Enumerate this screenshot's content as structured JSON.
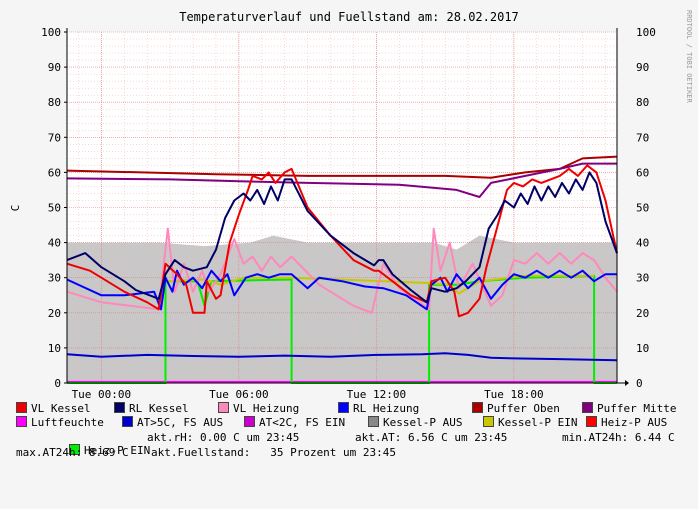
{
  "chart_data": {
    "type": "line",
    "title": "Temperaturverlauf und Fuellstand am: 28.02.2017",
    "ylabel": "C",
    "ylim": [
      0,
      100
    ],
    "yticks": [
      0,
      10,
      20,
      30,
      40,
      50,
      60,
      70,
      80,
      90,
      100
    ],
    "xlim": [
      -1.5,
      22.5
    ],
    "xticks": [
      {
        "h": 0,
        "label": "Tue 00:00"
      },
      {
        "h": 6,
        "label": "Tue 06:00"
      },
      {
        "h": 12,
        "label": "Tue 12:00"
      },
      {
        "h": 18,
        "label": "Tue 18:00"
      }
    ],
    "grid": true,
    "legend_position": "bottom",
    "fill_series": {
      "name": "Kessel-P AUS",
      "color": "#c8c8c8",
      "points": [
        [
          -1.5,
          40
        ],
        [
          2.5,
          40
        ],
        [
          4.5,
          39
        ],
        [
          6.5,
          40
        ],
        [
          7.5,
          42
        ],
        [
          9,
          40
        ],
        [
          12,
          40
        ],
        [
          14.5,
          40
        ],
        [
          15.5,
          38
        ],
        [
          16.5,
          42
        ],
        [
          18,
          40
        ],
        [
          20,
          40
        ],
        [
          22.5,
          40
        ]
      ]
    },
    "series": [
      {
        "name": "Puffer Oben",
        "color": "#aa0000",
        "width": 2,
        "points": [
          [
            -1.5,
            60.5
          ],
          [
            5,
            59.5
          ],
          [
            9,
            59
          ],
          [
            15,
            59
          ],
          [
            17,
            58.5
          ],
          [
            18.5,
            60
          ],
          [
            20,
            61
          ],
          [
            21,
            64
          ],
          [
            22.5,
            64.5
          ]
        ]
      },
      {
        "name": "Puffer Mitte",
        "color": "#800080",
        "width": 2,
        "points": [
          [
            -1.5,
            58.3
          ],
          [
            3,
            58
          ],
          [
            6,
            57.5
          ],
          [
            9,
            57
          ],
          [
            13,
            56.5
          ],
          [
            15.5,
            55
          ],
          [
            16.5,
            53
          ],
          [
            17,
            57
          ],
          [
            18.5,
            59
          ],
          [
            20,
            61
          ],
          [
            21,
            62.5
          ],
          [
            22.5,
            62.5
          ]
        ]
      },
      {
        "name": "Luftfeuchte",
        "color": "#ff00ff",
        "width": 2,
        "points": [
          [
            -1.5,
            0.3
          ],
          [
            22.5,
            0.3
          ]
        ]
      },
      {
        "name": "Heiz-P EIN",
        "color": "#00ee00",
        "width": 2,
        "points": [
          [
            -1.5,
            0
          ],
          [
            2.8,
            0
          ],
          [
            2.8,
            29
          ],
          [
            4.2,
            29
          ],
          [
            4.5,
            22
          ],
          [
            4.8,
            29
          ],
          [
            8.3,
            29.5
          ],
          [
            8.3,
            20
          ],
          [
            8.3,
            0
          ],
          [
            14.3,
            0
          ],
          [
            14.3,
            28
          ],
          [
            15.5,
            28
          ],
          [
            16.5,
            29
          ],
          [
            18.5,
            30
          ],
          [
            21.5,
            30.5
          ],
          [
            21.5,
            0
          ],
          [
            22.5,
            0
          ]
        ]
      },
      {
        "name": "Kessel-P EIN",
        "color": "#c8c800",
        "width": 2,
        "points": [
          [
            2.8,
            29
          ],
          [
            4.5,
            29.5
          ],
          [
            5.2,
            28
          ],
          [
            6.2,
            30
          ],
          [
            8.3,
            30
          ],
          [
            14.3,
            28.5
          ],
          [
            15.2,
            28
          ],
          [
            15.6,
            25.5
          ],
          [
            16.5,
            29
          ],
          [
            18.5,
            30.5
          ],
          [
            21.5,
            30.5
          ]
        ]
      },
      {
        "name": "VL Heizung",
        "color": "#ff88bb",
        "width": 2,
        "points": [
          [
            -1.5,
            26
          ],
          [
            0,
            23
          ],
          [
            2.5,
            21
          ],
          [
            2.9,
            44
          ],
          [
            3.2,
            26
          ],
          [
            3.6,
            34
          ],
          [
            4,
            26
          ],
          [
            4.4,
            32
          ],
          [
            4.7,
            26
          ],
          [
            5.2,
            31
          ],
          [
            5.8,
            41
          ],
          [
            6.2,
            34
          ],
          [
            6.6,
            36
          ],
          [
            7,
            32
          ],
          [
            7.4,
            36
          ],
          [
            7.8,
            33
          ],
          [
            8.3,
            36
          ],
          [
            9.5,
            28
          ],
          [
            11,
            22
          ],
          [
            11.8,
            20
          ],
          [
            12.3,
            34
          ],
          [
            13,
            27
          ],
          [
            14.3,
            21
          ],
          [
            14.5,
            44
          ],
          [
            14.8,
            32
          ],
          [
            15.2,
            40
          ],
          [
            15.6,
            27
          ],
          [
            16.2,
            34
          ],
          [
            17,
            22
          ],
          [
            17.5,
            25
          ],
          [
            18,
            35
          ],
          [
            18.5,
            34
          ],
          [
            19,
            37
          ],
          [
            19.5,
            34
          ],
          [
            20,
            37
          ],
          [
            20.5,
            34
          ],
          [
            21,
            37
          ],
          [
            21.5,
            35
          ],
          [
            22,
            30
          ],
          [
            22.5,
            26
          ]
        ]
      },
      {
        "name": "RL Heizung",
        "color": "#0000ff",
        "width": 2,
        "points": [
          [
            -1.5,
            29.5
          ],
          [
            0,
            25
          ],
          [
            1,
            25
          ],
          [
            2.3,
            26
          ],
          [
            2.6,
            21
          ],
          [
            2.8,
            30
          ],
          [
            3.1,
            26
          ],
          [
            3.3,
            32
          ],
          [
            3.6,
            28
          ],
          [
            4,
            30
          ],
          [
            4.4,
            27
          ],
          [
            4.8,
            32
          ],
          [
            5.2,
            29
          ],
          [
            5.5,
            31
          ],
          [
            5.8,
            25
          ],
          [
            6.3,
            30
          ],
          [
            6.8,
            31
          ],
          [
            7.3,
            30
          ],
          [
            7.8,
            31
          ],
          [
            8.3,
            31
          ],
          [
            9,
            27
          ],
          [
            9.5,
            30
          ],
          [
            10.5,
            29
          ],
          [
            11.5,
            27.5
          ],
          [
            12.3,
            27
          ],
          [
            13.3,
            25
          ],
          [
            14.2,
            21
          ],
          [
            14.4,
            28
          ],
          [
            14.8,
            30
          ],
          [
            15.1,
            26
          ],
          [
            15.5,
            31
          ],
          [
            16,
            27
          ],
          [
            16.5,
            30
          ],
          [
            17,
            24
          ],
          [
            17.5,
            28
          ],
          [
            18,
            31
          ],
          [
            18.5,
            30
          ],
          [
            19,
            32
          ],
          [
            19.5,
            30
          ],
          [
            20,
            32
          ],
          [
            20.5,
            30
          ],
          [
            21,
            32
          ],
          [
            21.5,
            29
          ],
          [
            22,
            31
          ],
          [
            22.5,
            31
          ]
        ]
      },
      {
        "name": "VL Kessel",
        "color": "#ee0000",
        "width": 2,
        "points": [
          [
            -1.5,
            34
          ],
          [
            -0.5,
            32
          ],
          [
            0,
            30
          ],
          [
            1,
            26
          ],
          [
            2,
            23
          ],
          [
            2.5,
            21
          ],
          [
            2.8,
            34
          ],
          [
            3.3,
            31
          ],
          [
            3.7,
            28
          ],
          [
            4,
            20
          ],
          [
            4.5,
            20
          ],
          [
            4.6,
            29
          ],
          [
            5,
            24
          ],
          [
            5.2,
            25
          ],
          [
            5.6,
            40
          ],
          [
            6,
            48
          ],
          [
            6.4,
            55
          ],
          [
            6.6,
            59
          ],
          [
            7,
            58
          ],
          [
            7.3,
            60
          ],
          [
            7.6,
            57
          ],
          [
            8,
            60
          ],
          [
            8.3,
            61
          ],
          [
            9,
            50
          ],
          [
            10,
            42
          ],
          [
            11,
            35
          ],
          [
            11.9,
            32
          ],
          [
            12.1,
            32
          ],
          [
            12.3,
            31
          ],
          [
            12.7,
            29
          ],
          [
            13.5,
            25
          ],
          [
            14.2,
            23
          ],
          [
            14.4,
            29
          ],
          [
            15,
            30
          ],
          [
            15.4,
            26
          ],
          [
            15.6,
            19
          ],
          [
            16,
            20
          ],
          [
            16.5,
            24
          ],
          [
            16.8,
            33
          ],
          [
            17.3,
            45
          ],
          [
            17.7,
            55
          ],
          [
            18,
            57
          ],
          [
            18.4,
            56
          ],
          [
            18.8,
            58
          ],
          [
            19.2,
            57
          ],
          [
            19.6,
            58
          ],
          [
            20,
            59
          ],
          [
            20.4,
            61
          ],
          [
            20.8,
            59
          ],
          [
            21.2,
            62
          ],
          [
            21.6,
            60
          ],
          [
            22,
            52
          ],
          [
            22.4,
            40
          ],
          [
            22.5,
            37
          ]
        ]
      },
      {
        "name": "RL Kessel",
        "color": "#000066",
        "width": 2,
        "points": [
          [
            -1.5,
            35
          ],
          [
            -0.7,
            37
          ],
          [
            0,
            33
          ],
          [
            1,
            29
          ],
          [
            1.5,
            26.5
          ],
          [
            2.5,
            24
          ],
          [
            2.8,
            31
          ],
          [
            3.2,
            35
          ],
          [
            3.6,
            33
          ],
          [
            4,
            32
          ],
          [
            4.6,
            33
          ],
          [
            5,
            38
          ],
          [
            5.4,
            47
          ],
          [
            5.8,
            52
          ],
          [
            6.2,
            54
          ],
          [
            6.5,
            52
          ],
          [
            6.8,
            55
          ],
          [
            7.1,
            51
          ],
          [
            7.4,
            56
          ],
          [
            7.7,
            52
          ],
          [
            8,
            58
          ],
          [
            8.3,
            58
          ],
          [
            9,
            49
          ],
          [
            10,
            42
          ],
          [
            11,
            37
          ],
          [
            11.9,
            33.5
          ],
          [
            12.1,
            35
          ],
          [
            12.3,
            35
          ],
          [
            12.7,
            31
          ],
          [
            13.5,
            26.5
          ],
          [
            14.2,
            23
          ],
          [
            14.4,
            27
          ],
          [
            15,
            26
          ],
          [
            15.5,
            27
          ],
          [
            15.9,
            29
          ],
          [
            16.5,
            33
          ],
          [
            16.9,
            44
          ],
          [
            17.3,
            48
          ],
          [
            17.6,
            52
          ],
          [
            18,
            50
          ],
          [
            18.3,
            54
          ],
          [
            18.6,
            51
          ],
          [
            18.9,
            56
          ],
          [
            19.2,
            52
          ],
          [
            19.5,
            56
          ],
          [
            19.8,
            53
          ],
          [
            20.1,
            57
          ],
          [
            20.4,
            54
          ],
          [
            20.7,
            58
          ],
          [
            21,
            55
          ],
          [
            21.3,
            60
          ],
          [
            21.6,
            57
          ],
          [
            22,
            46
          ],
          [
            22.5,
            37
          ]
        ]
      },
      {
        "name": "AT>5C, FS AUS",
        "color": "#0000cc",
        "width": 2,
        "points": [
          [
            -1.5,
            8.2
          ],
          [
            0,
            7.5
          ],
          [
            2,
            8
          ],
          [
            4,
            7.7
          ],
          [
            6,
            7.5
          ],
          [
            8,
            7.8
          ],
          [
            10,
            7.5
          ],
          [
            12,
            8
          ],
          [
            14,
            8.2
          ],
          [
            15,
            8.5
          ],
          [
            16,
            8
          ],
          [
            17,
            7.2
          ],
          [
            18,
            7
          ],
          [
            20,
            6.8
          ],
          [
            22.5,
            6.5
          ]
        ]
      }
    ]
  },
  "legend": {
    "row1": [
      {
        "label": "VL Kessel",
        "color": "#ee0000"
      },
      {
        "label": "RL Kessel",
        "color": "#000066"
      },
      {
        "label": "VL Heizung",
        "color": "#ff88bb"
      },
      {
        "label": "RL Heizung",
        "color": "#0000ff"
      },
      {
        "label": "Puffer Oben",
        "color": "#aa0000"
      },
      {
        "label": "Puffer Mitte",
        "color": "#800080"
      }
    ],
    "row2": [
      {
        "label": "Luftfeuchte",
        "color": "#ff00ff"
      },
      {
        "label": "AT>5C, FS AUS",
        "color": "#0000cc"
      },
      {
        "label": "AT<2C, FS EIN",
        "color": "#cc00cc"
      },
      {
        "label": "Kessel-P AUS",
        "color": "#888888"
      },
      {
        "label": "Kessel-P EIN",
        "color": "#c8c800"
      },
      {
        "label": "Heiz-P AUS",
        "color": "#ff0000"
      }
    ],
    "row3_item": {
      "label": "Heiz-P EIN",
      "color": "#00ee00"
    }
  },
  "stats": {
    "rh": "akt.rH: 0.00 C um 23:45",
    "at": "akt.AT: 6.56 C um 23:45",
    "min": "min.AT24h: 6.44 C",
    "max": "max.AT24h: 8.69 C",
    "fuell": "akt.Fuellstand:   35 Prozent um 23:45"
  },
  "watermark": "RRDTOOL / TOBI OETIKER"
}
